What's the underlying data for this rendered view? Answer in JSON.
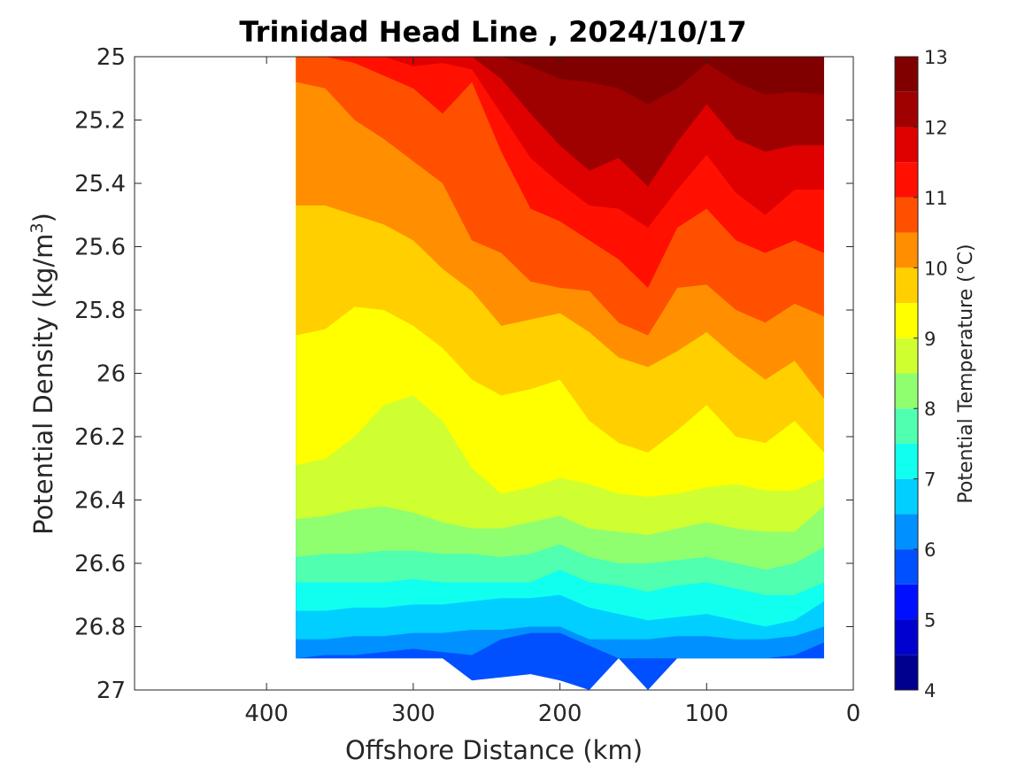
{
  "chart_data": {
    "type": "heatmap",
    "subtype": "filled-contour",
    "title": "Trinidad Head Line , 2024/10/17",
    "xlabel": "Offshore Distance (km)",
    "ylabel": "Potential Density (kg/m",
    "ylabel_sup": "3",
    "ylabel_close": ")",
    "xlim": [
      490,
      0
    ],
    "ylim": [
      25,
      27
    ],
    "x_reversed": true,
    "y_reversed": true,
    "xticks": [
      400,
      300,
      200,
      100,
      0
    ],
    "yticks": [
      25,
      25.2,
      25.4,
      25.6,
      25.8,
      26,
      26.2,
      26.4,
      26.6,
      26.8,
      27
    ],
    "xtick_labels": [
      "400",
      "300",
      "200",
      "100",
      "0"
    ],
    "ytick_labels": [
      "25",
      "25.2",
      "25.4",
      "25.6",
      "25.8",
      "26",
      "26.2",
      "26.4",
      "26.6",
      "26.8",
      "27"
    ],
    "colorbar": {
      "label": "Potential Temperature (°C)",
      "min": 4,
      "max": 13,
      "step": 0.5,
      "ticks": [
        4,
        5,
        6,
        7,
        8,
        9,
        10,
        11,
        12,
        13
      ],
      "tick_labels": [
        "4",
        "5",
        "6",
        "7",
        "8",
        "9",
        "10",
        "11",
        "12",
        "13"
      ],
      "colors": [
        "#00008f",
        "#0000cf",
        "#0010ff",
        "#0050ff",
        "#0090ff",
        "#00cfff",
        "#10ffef",
        "#50ffaf",
        "#90ff6f",
        "#cfff30",
        "#ffff00",
        "#ffcf00",
        "#ff8f00",
        "#ff5000",
        "#ff1000",
        "#df0000",
        "#9f0000",
        "#800000"
      ]
    },
    "data_extent": {
      "x_min": 20,
      "x_max": 380,
      "density_max": 26.9
    },
    "stations_x": [
      380,
      360,
      340,
      320,
      300,
      280,
      260,
      240,
      220,
      200,
      180,
      160,
      140,
      120,
      100,
      80,
      60,
      40,
      20
    ],
    "isotherms": [
      {
        "t": 5.5,
        "density": [
          26.9,
          26.9,
          26.9,
          26.9,
          26.9,
          26.9,
          26.97,
          26.96,
          26.95,
          26.97,
          27,
          26.9,
          27,
          26.9,
          26.9,
          26.9,
          26.9,
          26.9,
          26.9
        ]
      },
      {
        "t": 6,
        "density": [
          26.9,
          26.89,
          26.89,
          26.88,
          26.87,
          26.88,
          26.89,
          26.84,
          26.82,
          26.82,
          26.86,
          26.9,
          26.9,
          26.9,
          26.9,
          26.9,
          26.9,
          26.89,
          26.85
        ]
      },
      {
        "t": 6.5,
        "density": [
          26.84,
          26.84,
          26.83,
          26.83,
          26.82,
          26.82,
          26.81,
          26.81,
          26.8,
          26.8,
          26.84,
          26.84,
          26.84,
          26.83,
          26.83,
          26.84,
          26.84,
          26.83,
          26.8
        ]
      },
      {
        "t": 7,
        "density": [
          26.75,
          26.75,
          26.74,
          26.74,
          26.73,
          26.73,
          26.72,
          26.71,
          26.71,
          26.7,
          26.74,
          26.76,
          26.78,
          26.77,
          26.76,
          26.78,
          26.8,
          26.78,
          26.72
        ]
      },
      {
        "t": 7.5,
        "density": [
          26.66,
          26.66,
          26.66,
          26.66,
          26.65,
          26.66,
          26.66,
          26.66,
          26.66,
          26.62,
          26.66,
          26.67,
          26.69,
          26.67,
          26.66,
          26.68,
          26.7,
          26.7,
          26.66
        ]
      },
      {
        "t": 8,
        "density": [
          26.58,
          26.57,
          26.57,
          26.56,
          26.56,
          26.57,
          26.57,
          26.58,
          26.57,
          26.54,
          26.58,
          26.6,
          26.6,
          26.59,
          26.58,
          26.6,
          26.62,
          26.6,
          26.55
        ]
      },
      {
        "t": 8.5,
        "density": [
          26.46,
          26.45,
          26.43,
          26.42,
          26.44,
          26.47,
          26.49,
          26.49,
          26.47,
          26.45,
          26.49,
          26.5,
          26.51,
          26.49,
          26.47,
          26.49,
          26.5,
          26.5,
          26.42
        ]
      },
      {
        "t": 9,
        "density": [
          26.29,
          26.27,
          26.2,
          26.1,
          26.07,
          26.15,
          26.3,
          26.38,
          26.36,
          26.33,
          26.35,
          26.38,
          26.39,
          26.38,
          26.36,
          26.35,
          26.37,
          26.37,
          26.33
        ]
      },
      {
        "t": 9.5,
        "density": [
          25.88,
          25.86,
          25.79,
          25.8,
          25.85,
          25.92,
          26.02,
          26.07,
          26.05,
          26.02,
          26.15,
          26.22,
          26.25,
          26.18,
          26.1,
          26.2,
          26.22,
          26.15,
          26.25
        ]
      },
      {
        "t": 10,
        "density": [
          25.47,
          25.47,
          25.5,
          25.53,
          25.58,
          25.67,
          25.74,
          25.85,
          25.83,
          25.81,
          25.87,
          25.95,
          25.98,
          25.93,
          25.87,
          25.95,
          26.02,
          25.96,
          26.08
        ]
      },
      {
        "t": 10.5,
        "density": [
          25.08,
          25.1,
          25.2,
          25.26,
          25.33,
          25.4,
          25.58,
          25.62,
          25.71,
          25.73,
          25.74,
          25.84,
          25.88,
          25.73,
          25.72,
          25.8,
          25.84,
          25.78,
          25.82
        ]
      },
      {
        "t": 11,
        "density": [
          25,
          25,
          25.02,
          25.06,
          25.1,
          25.18,
          25.08,
          25.3,
          25.48,
          25.52,
          25.58,
          25.64,
          25.73,
          25.54,
          25.48,
          25.58,
          25.62,
          25.58,
          25.62
        ]
      },
      {
        "t": 11.5,
        "density": [
          25,
          25,
          25,
          25,
          25.03,
          25.02,
          25.04,
          25.18,
          25.32,
          25.4,
          25.47,
          25.48,
          25.54,
          25.42,
          25.31,
          25.43,
          25.5,
          25.42,
          25.42
        ]
      },
      {
        "t": 12,
        "density": [
          25,
          25,
          25,
          25,
          25,
          25,
          25,
          25.07,
          25.18,
          25.28,
          25.36,
          25.32,
          25.41,
          25.27,
          25.15,
          25.26,
          25.3,
          25.28,
          25.28
        ]
      },
      {
        "t": 12.5,
        "density": [
          25,
          25,
          25,
          25,
          25,
          25,
          25,
          25,
          25.03,
          25.07,
          25.08,
          25.1,
          25.15,
          25.1,
          25.02,
          25.08,
          25.12,
          25.11,
          25.12
        ]
      },
      {
        "t": 13,
        "density": [
          25,
          25,
          25,
          25,
          25,
          25,
          25,
          25,
          25,
          25.01,
          25.02,
          25,
          25,
          25,
          25,
          25.02,
          25.05,
          25.02,
          25
        ]
      }
    ]
  }
}
